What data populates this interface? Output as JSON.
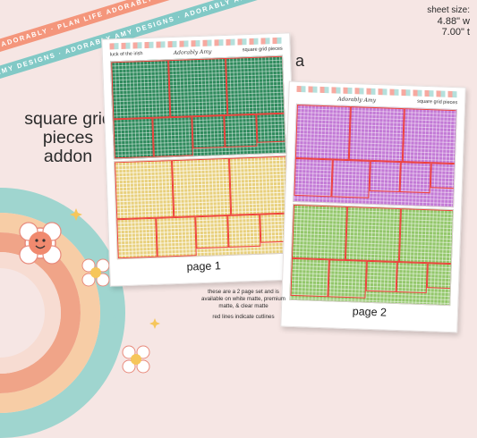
{
  "ribbons": {
    "top": "· PLAN LIFE ADORABLY · PLAN LIFE ADORABLY · PLAN LIFE ADORABLY ·",
    "bottom": "ADORABLY AMY DESIGNS · ADORABLY AMY DESIGNS · ADORABLY AMY DESIGNS ·"
  },
  "sheet_size": {
    "label": "sheet size:",
    "width": "4.88\" w",
    "height": "7.00\" t"
  },
  "headline": "square grid pieces addon",
  "variant_letter": "a",
  "sheets": [
    {
      "header_left": "luck of the irish",
      "brand": "Adorably Amy",
      "header_right": "square grid pieces",
      "page_label": "page 1"
    },
    {
      "header_left": "",
      "brand": "Adorably Amy",
      "header_right": "square grid pieces",
      "page_label": "page 2"
    }
  ],
  "info": {
    "line1": "these are a 2 page set and is available on white matte, premium matte, & clear matte",
    "line2": "red lines indicate cutlines"
  },
  "colors": {
    "background": "#f6e6e4",
    "ribbon_top": "#f4967c",
    "ribbon_bottom": "#82c9c6",
    "grid_green": "#2e8a5c",
    "grid_yellow": "#e8d07c",
    "grid_purple": "#c37ad6",
    "grid_lime": "#93c76b",
    "cutline": "#ef3f3a"
  }
}
